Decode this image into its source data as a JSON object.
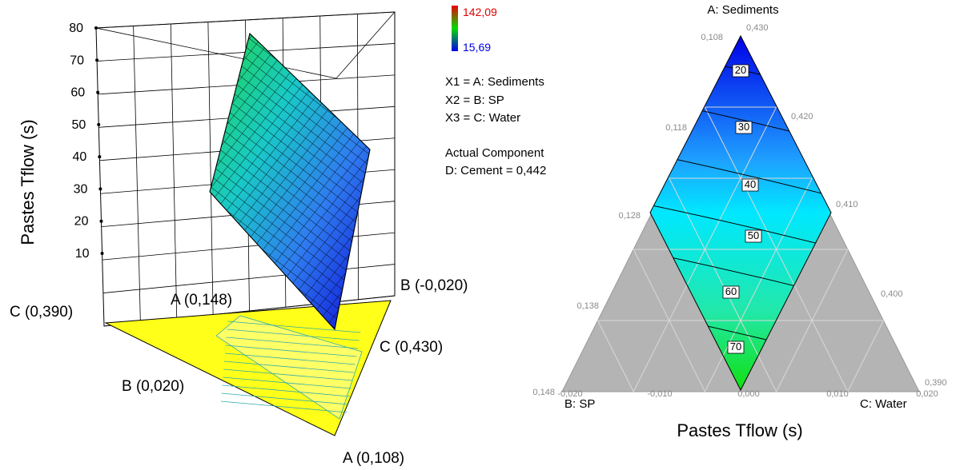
{
  "figure": {
    "left_panel": {
      "type": "3d-surface",
      "zlabel": "Pastes Tflow (s)",
      "zticks": [
        "80",
        "70",
        "60",
        "50",
        "40",
        "30",
        "20",
        "10"
      ],
      "corner_labels": [
        "C (0,390)",
        "A (0,148)",
        "B (-0,020)",
        "B (0,020)",
        "C (0,430)",
        "A (0,108)"
      ]
    },
    "colorbar": {
      "max": "142,09",
      "min": "15,69",
      "max_color": "#e00000",
      "min_color": "#0000e0"
    },
    "legend": {
      "lines": [
        "X1 = A: Sediments",
        "X2 = B: SP",
        "X3 = C: Water"
      ],
      "actual_title": "Actual Component",
      "actual_value": "D: Cement = 0,442"
    },
    "right_panel": {
      "type": "ternary-contour",
      "top_label": "A: Sediments",
      "left_label": "B: SP",
      "right_label": "C: Water",
      "title": "Pastes Tflow (s)",
      "a_ticks": [
        "0,108",
        "0,118",
        "0,128",
        "0,138",
        "0,148"
      ],
      "c_ticks": [
        "0,430",
        "0,420",
        "0,410",
        "0,400",
        "0,390"
      ],
      "b_ticks": [
        "-0,020",
        "-0,010",
        "0,000",
        "0,010",
        "0,020"
      ],
      "contour_labels": [
        "20",
        "30",
        "40",
        "50",
        "60",
        "70"
      ]
    }
  },
  "chart_data": [
    {
      "type": "heatmap",
      "kind": "3d-response-surface",
      "zlabel": "Pastes Tflow (s)",
      "zlim": [
        10,
        80
      ],
      "axes": {
        "A": {
          "name": "Sediments",
          "range": [
            0.108,
            0.148
          ]
        },
        "B": {
          "name": "SP",
          "range": [
            -0.02,
            0.02
          ]
        },
        "C": {
          "name": "Water",
          "range": [
            0.39,
            0.43
          ]
        }
      },
      "colorbar_range": [
        15.69,
        142.09
      ],
      "actual_component": "D: Cement = 0,442"
    },
    {
      "type": "heatmap",
      "kind": "ternary-contour",
      "title": "Pastes Tflow (s)",
      "contour_levels": [
        20,
        30,
        40,
        50,
        60,
        70
      ],
      "a_range": [
        0.108,
        0.148
      ],
      "b_range": [
        -0.02,
        0.02
      ],
      "c_range": [
        0.39,
        0.43
      ]
    }
  ]
}
